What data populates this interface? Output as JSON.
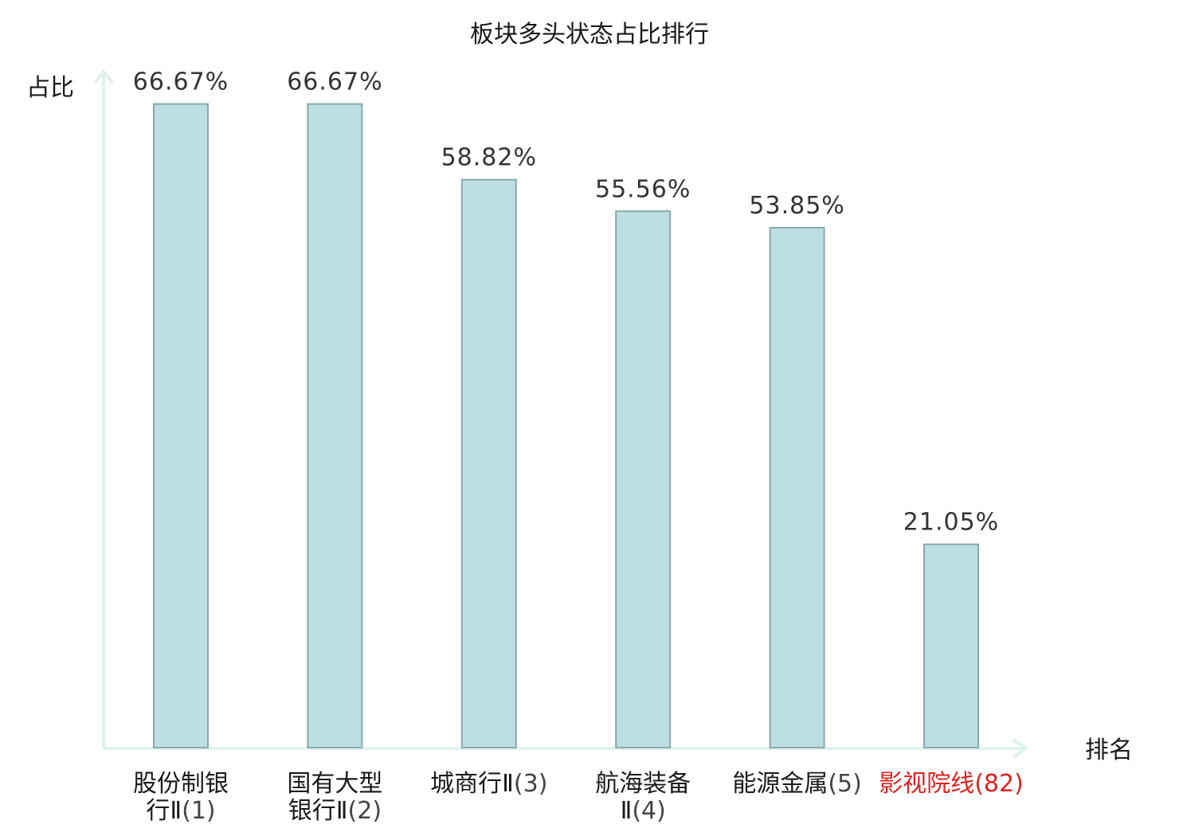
{
  "chart_data": {
    "type": "bar",
    "title": "板块多头状态占比排行",
    "xlabel": "排名",
    "ylabel": "占比",
    "ylim": [
      0,
      70
    ],
    "grid": false,
    "categories": [
      {
        "name": "股份制银行Ⅱ",
        "rank": "(1)",
        "highlight": false
      },
      {
        "name": "国有大型银行Ⅱ",
        "rank": "(2)",
        "highlight": false
      },
      {
        "name": "城商行Ⅱ",
        "rank": "(3)",
        "highlight": false
      },
      {
        "name": "航海装备Ⅱ",
        "rank": "(4)",
        "highlight": false
      },
      {
        "name": "能源金属",
        "rank": "(5)",
        "highlight": false
      },
      {
        "name": "影视院线",
        "rank": "(82)",
        "highlight": true
      }
    ],
    "values": [
      66.67,
      66.67,
      58.82,
      55.56,
      53.85,
      21.05
    ],
    "value_labels": [
      "66.67%",
      "66.67%",
      "58.82%",
      "55.56%",
      "53.85%",
      "21.05%"
    ],
    "colors": {
      "bar_fill": "#bce0e2",
      "bar_stroke": "#8aa9ab",
      "axis": "#dff2ef",
      "label_text": "#1a1a1a",
      "rank_text": "#444444",
      "highlight_text": "#e02020"
    }
  }
}
